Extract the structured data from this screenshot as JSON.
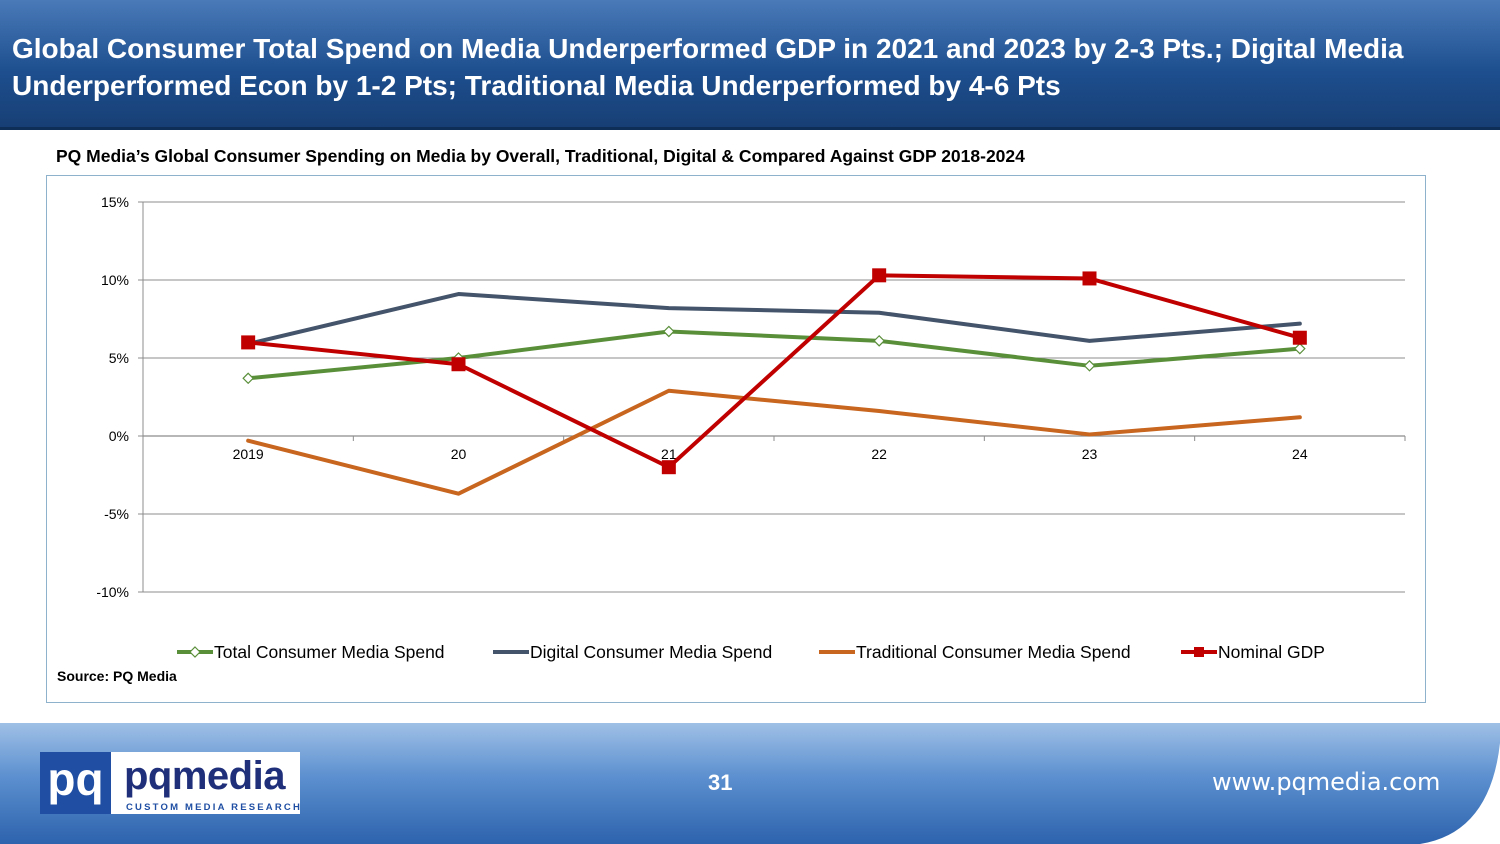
{
  "slide": {
    "title": "Global Consumer Total Spend on Media Underperformed GDP in 2021 and 2023 by 2-3 Pts.; Digital Media Underperformed Econ by 1-2 Pts; Traditional Media Underperformed by 4-6 Pts",
    "subtitle": "PQ Media’s Global Consumer Spending on Media by Overall, Traditional, Digital & Compared Against GDP 2018-2024",
    "source": "Source: PQ Media",
    "page_number": "31",
    "website": "www.pqmedia.com"
  },
  "logo": {
    "box_text": "pq",
    "word": "pqmedia",
    "tagline": "CUSTOM MEDIA RESEARCH"
  },
  "colors": {
    "header": "#1e4f8f",
    "total": "#5a8f3a",
    "digital": "#44546a",
    "traditional": "#c8651e",
    "gdp": "#c00000"
  },
  "chart_data": {
    "type": "line",
    "title": "PQ Media’s Global Consumer Spending on Media by Overall, Traditional, Digital & Compared Against GDP 2018-2024",
    "categories": [
      "2019",
      "20",
      "21",
      "22",
      "23",
      "24"
    ],
    "ylim": [
      -10,
      15
    ],
    "yticks": [
      15,
      10,
      5,
      0,
      -5,
      -10
    ],
    "ytick_labels": [
      "15%",
      "10%",
      "5%",
      "0%",
      "-5%",
      "-10%"
    ],
    "grid": true,
    "legend_position": "bottom",
    "series": [
      {
        "name": "Total Consumer Media Spend",
        "values": [
          3.7,
          5.0,
          6.7,
          6.1,
          4.5,
          5.6
        ],
        "color": "#5a8f3a",
        "marker": "diamond"
      },
      {
        "name": "Digital Consumer Media Spend",
        "values": [
          5.9,
          9.1,
          8.2,
          7.9,
          6.1,
          7.2
        ],
        "color": "#44546a",
        "marker": "none"
      },
      {
        "name": "Traditional Consumer Media Spend",
        "values": [
          -0.3,
          -3.7,
          2.9,
          1.6,
          0.1,
          1.2
        ],
        "color": "#c8651e",
        "marker": "none"
      },
      {
        "name": "Nominal GDP",
        "values": [
          6.0,
          4.6,
          -2.0,
          10.3,
          10.1,
          6.3
        ],
        "color": "#c00000",
        "marker": "square"
      }
    ]
  }
}
